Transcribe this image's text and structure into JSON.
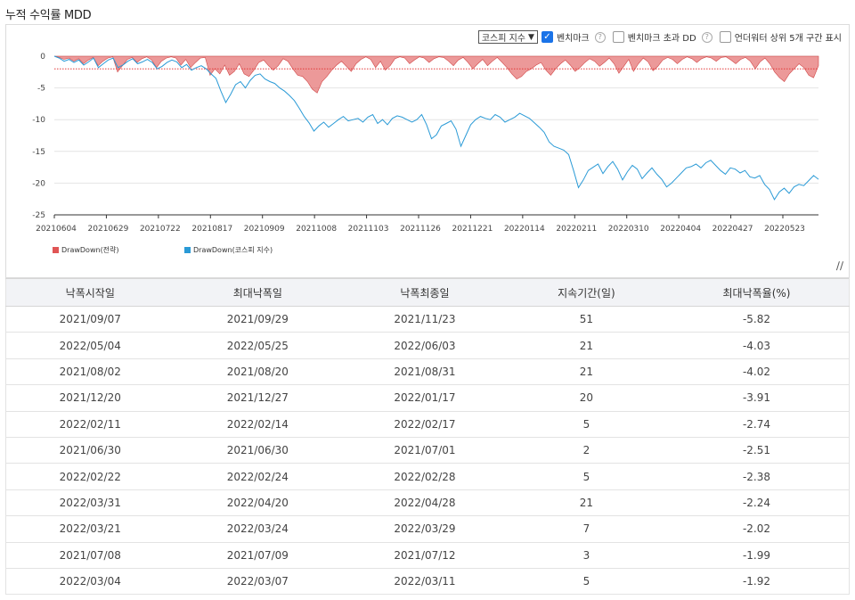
{
  "title": "누적 수익률 MDD",
  "controls": {
    "select_value": "코스피 지수",
    "benchmark_label": "벤치마크",
    "benchmark_checked": true,
    "excess_dd_label": "벤치마크 초과 DD",
    "excess_dd_checked": false,
    "underwater_label": "언더워터 상위 5개 구간 표시",
    "underwater_checked": false,
    "help_glyph": "?"
  },
  "chart_data": {
    "type": "area",
    "x_tick_labels": [
      "20210604",
      "20210629",
      "20210722",
      "20210817",
      "20210909",
      "20211008",
      "20211103",
      "20211126",
      "20211221",
      "20220114",
      "20220211",
      "20220310",
      "20220404",
      "20220427",
      "20220523"
    ],
    "y_tick_labels": [
      "0",
      "-5",
      "-10",
      "-15",
      "-20",
      "-25"
    ],
    "ylim": [
      -25,
      0
    ],
    "threshold_value": -2,
    "grid": true,
    "series": [
      {
        "name": "DrawDown(전략)",
        "color": "#e05555",
        "type": "area",
        "values": [
          0,
          -0.2,
          -0.5,
          -0.3,
          -0.8,
          -0.4,
          -1.2,
          -0.6,
          -0.2,
          -1.5,
          -0.8,
          -0.3,
          -0.1,
          -2.5,
          -1.5,
          -0.5,
          -0.2,
          -1.0,
          -0.4,
          -0.1,
          -0.6,
          -1.8,
          -0.8,
          -0.3,
          -0.1,
          -0.3,
          -1.4,
          -0.5,
          -1.8,
          -1.0,
          -0.3,
          -0.2,
          -3.0,
          -2.0,
          -2.8,
          -1.4,
          -3.0,
          -2.4,
          -1.2,
          -2.8,
          -3.2,
          -2.2,
          -1.0,
          -0.6,
          -1.5,
          -2.2,
          -1.5,
          -0.4,
          -0.8,
          -2.0,
          -3.0,
          -3.2,
          -4.0,
          -5.2,
          -5.8,
          -4.0,
          -3.2,
          -2.2,
          -1.4,
          -0.8,
          -1.6,
          -2.4,
          -1.2,
          -0.5,
          -0.1,
          -0.5,
          -1.8,
          -0.8,
          -2.2,
          -1.5,
          -0.4,
          -0.1,
          -0.3,
          -1.2,
          -0.6,
          -0.1,
          -0.3,
          -1.0,
          -0.4,
          -0.1,
          -0.2,
          -0.8,
          -1.5,
          -0.6,
          -0.2,
          -1.0,
          -2.0,
          -1.2,
          -0.5,
          -1.5,
          -0.8,
          -0.2,
          -1.0,
          -1.8,
          -2.8,
          -3.6,
          -3.2,
          -2.4,
          -2.0,
          -1.4,
          -1.0,
          -2.2,
          -3.0,
          -2.0,
          -1.2,
          -0.6,
          -1.4,
          -2.4,
          -1.8,
          -1.0,
          -0.4,
          -0.8,
          -1.6,
          -1.0,
          -0.3,
          -1.2,
          -2.7,
          -1.6,
          -0.5,
          -2.4,
          -1.2,
          -0.3,
          -0.9,
          -2.3,
          -1.6,
          -0.6,
          -0.2,
          -0.5,
          -1.2,
          -0.5,
          -0.1,
          -0.4,
          -1.0,
          -0.4,
          -0.1,
          -0.3,
          -0.8,
          -0.2,
          -0.1,
          -0.6,
          -1.2,
          -0.5,
          -0.2,
          -0.8,
          -2.0,
          -0.9,
          -0.3,
          -1.2,
          -2.5,
          -3.4,
          -4.0,
          -2.8,
          -2.0,
          -1.2,
          -1.8,
          -3.0,
          -3.4,
          -1.5
        ],
        "legend": "DrawDown(전략)"
      },
      {
        "name": "DrawDown(코스피 지수)",
        "color": "#2a9ad6",
        "type": "line",
        "values": [
          0,
          -0.3,
          -0.8,
          -0.5,
          -1.0,
          -0.6,
          -1.4,
          -0.9,
          -0.3,
          -1.8,
          -1.2,
          -0.6,
          -0.3,
          -1.8,
          -1.4,
          -0.8,
          -0.4,
          -1.2,
          -0.9,
          -0.5,
          -1.0,
          -2.0,
          -1.6,
          -1.0,
          -0.6,
          -0.9,
          -1.8,
          -1.3,
          -2.2,
          -1.8,
          -1.5,
          -2.0,
          -2.8,
          -3.5,
          -5.5,
          -7.3,
          -6.0,
          -4.5,
          -4.0,
          -5.0,
          -3.8,
          -3.0,
          -2.8,
          -3.6,
          -4.0,
          -4.3,
          -5.0,
          -5.5,
          -6.2,
          -7.0,
          -8.2,
          -9.5,
          -10.5,
          -11.8,
          -11.0,
          -10.4,
          -11.2,
          -10.6,
          -10.0,
          -9.5,
          -10.2,
          -10.0,
          -9.8,
          -10.4,
          -9.6,
          -9.2,
          -10.6,
          -10.0,
          -10.8,
          -9.8,
          -9.4,
          -9.6,
          -10.0,
          -10.4,
          -10.0,
          -9.2,
          -10.8,
          -13.0,
          -12.4,
          -11.0,
          -10.6,
          -10.2,
          -11.5,
          -14.2,
          -12.5,
          -10.8,
          -10.0,
          -9.5,
          -9.8,
          -10.0,
          -9.2,
          -9.6,
          -10.4,
          -10.0,
          -9.6,
          -9.0,
          -9.4,
          -9.8,
          -10.5,
          -11.2,
          -12.0,
          -13.5,
          -14.2,
          -14.5,
          -14.8,
          -15.5,
          -18.0,
          -20.7,
          -19.5,
          -18.0,
          -17.5,
          -17.0,
          -18.5,
          -17.4,
          -16.6,
          -17.8,
          -19.5,
          -18.2,
          -17.2,
          -17.8,
          -19.3,
          -18.4,
          -17.6,
          -18.6,
          -19.4,
          -20.6,
          -20.0,
          -19.2,
          -18.4,
          -17.6,
          -17.4,
          -17.0,
          -17.6,
          -16.8,
          -16.4,
          -17.2,
          -18.0,
          -18.6,
          -17.6,
          -17.8,
          -18.4,
          -18.0,
          -19.0,
          -19.2,
          -18.8,
          -20.2,
          -21.0,
          -22.6,
          -21.4,
          -20.8,
          -21.6,
          -20.6,
          -20.2,
          -20.4,
          -19.6,
          -18.8,
          -19.4
        ]
      }
    ],
    "legend": [
      {
        "label": "DrawDown(전략)",
        "color": "#e05555"
      },
      {
        "label": "DrawDown(코스피 지수)",
        "color": "#2a9ad6"
      }
    ]
  },
  "table": {
    "headers": [
      "낙폭시작일",
      "최대낙폭일",
      "낙폭최종일",
      "지속기간(일)",
      "최대낙폭율(%)"
    ],
    "rows": [
      [
        "2021/09/07",
        "2021/09/29",
        "2021/11/23",
        "51",
        "-5.82"
      ],
      [
        "2022/05/04",
        "2022/05/25",
        "2022/06/03",
        "21",
        "-4.03"
      ],
      [
        "2021/08/02",
        "2021/08/20",
        "2021/08/31",
        "21",
        "-4.02"
      ],
      [
        "2021/12/20",
        "2021/12/27",
        "2022/01/17",
        "20",
        "-3.91"
      ],
      [
        "2022/02/11",
        "2022/02/14",
        "2022/02/17",
        "5",
        "-2.74"
      ],
      [
        "2021/06/30",
        "2021/06/30",
        "2021/07/01",
        "2",
        "-2.51"
      ],
      [
        "2022/02/22",
        "2022/02/24",
        "2022/02/28",
        "5",
        "-2.38"
      ],
      [
        "2022/03/31",
        "2022/04/20",
        "2022/04/28",
        "21",
        "-2.24"
      ],
      [
        "2022/03/21",
        "2022/03/24",
        "2022/03/29",
        "7",
        "-2.02"
      ],
      [
        "2021/07/08",
        "2021/07/09",
        "2021/07/12",
        "3",
        "-1.99"
      ],
      [
        "2022/03/04",
        "2022/03/07",
        "2022/03/11",
        "5",
        "-1.92"
      ]
    ]
  }
}
